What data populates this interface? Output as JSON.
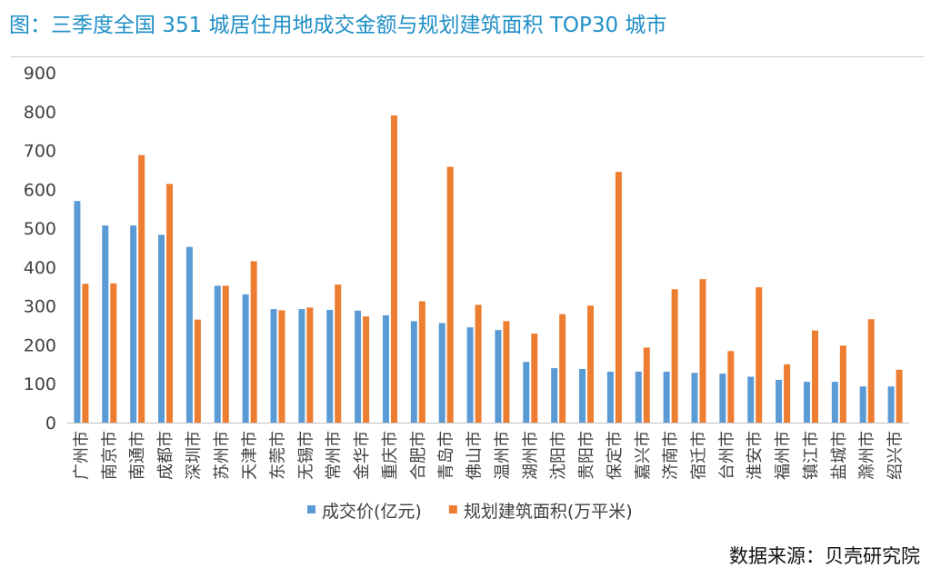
{
  "title": "图：三季度全国 351 城居住用地成交金额与规划建筑面积 TOP30 城市",
  "source": "数据来源：贝壳研究院",
  "colors": {
    "series1": "#5b9bd5",
    "series2": "#ed7d31",
    "title": "#1f8fc7"
  },
  "chart_data": {
    "type": "bar",
    "ylim": [
      0,
      900
    ],
    "yticks": [
      0,
      100,
      200,
      300,
      400,
      500,
      600,
      700,
      800,
      900
    ],
    "legend_position": "bottom",
    "categories": [
      "广州市",
      "南京市",
      "南通市",
      "成都市",
      "深圳市",
      "苏州市",
      "天津市",
      "东莞市",
      "无锡市",
      "常州市",
      "金华市",
      "重庆市",
      "合肥市",
      "青岛市",
      "佛山市",
      "温州市",
      "湖州市",
      "沈阳市",
      "贵阳市",
      "保定市",
      "嘉兴市",
      "济南市",
      "宿迁市",
      "台州市",
      "淮安市",
      "福州市",
      "镇江市",
      "盐城市",
      "滁州市",
      "绍兴市"
    ],
    "series": [
      {
        "name": "成交价(亿元)",
        "values": [
          570,
          507,
          507,
          483,
          452,
          352,
          330,
          292,
          292,
          290,
          288,
          276,
          261,
          256,
          245,
          238,
          156,
          140,
          138,
          131,
          131,
          131,
          128,
          126,
          118,
          110,
          105,
          105,
          93,
          93
        ]
      },
      {
        "name": "规划建筑面积(万平米)",
        "values": [
          357,
          358,
          688,
          614,
          265,
          352,
          415,
          289,
          296,
          355,
          273,
          790,
          312,
          658,
          303,
          261,
          229,
          279,
          301,
          645,
          193,
          343,
          369,
          184,
          348,
          150,
          237,
          198,
          266,
          136
        ]
      }
    ]
  }
}
